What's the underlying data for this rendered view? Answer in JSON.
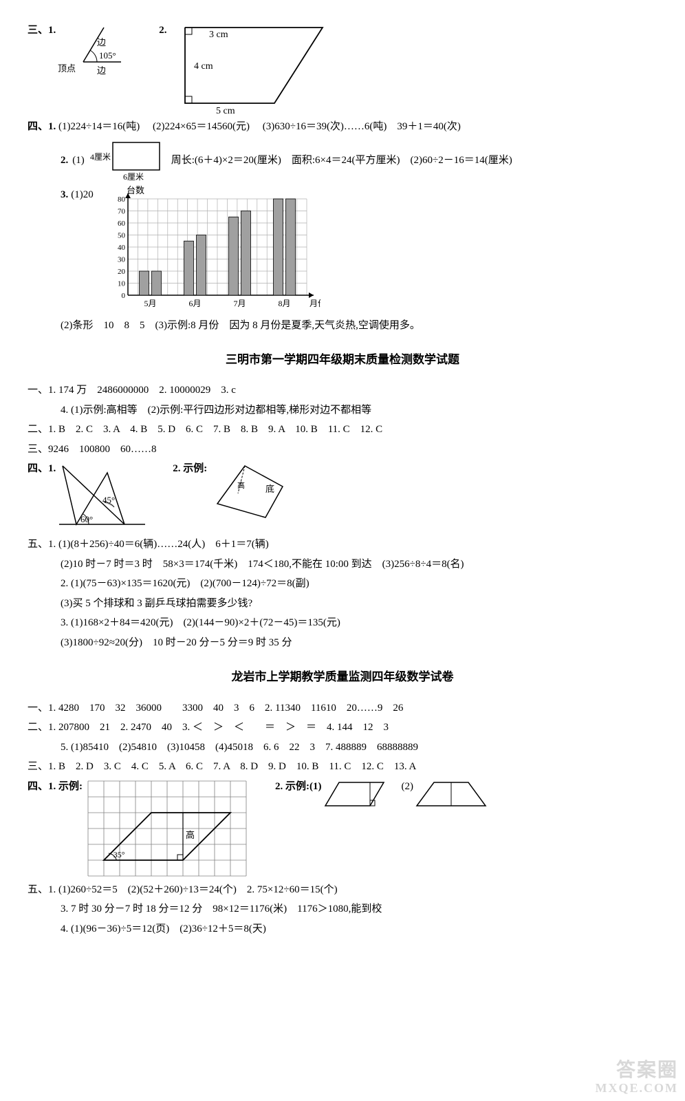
{
  "sec3": {
    "label": "三、1.",
    "angle_label_side1": "边",
    "angle_label_side2": "边",
    "angle_vertex": "顶点",
    "angle_value": "105°",
    "q2": {
      "label": "2.",
      "top": "3 cm",
      "left": "4 cm",
      "bottom": "5 cm"
    }
  },
  "sec4": {
    "label": "四、1.",
    "q1_1": "(1)224÷14＝16(吨)",
    "q1_2": "(2)224×65＝14560(元)",
    "q1_3": "(3)630÷16＝39(次)……6(吨)　39＋1＝40(次)",
    "q2": {
      "label": "2.",
      "p1": "(1)",
      "rect_w": "6厘米",
      "rect_h": "4厘米",
      "peri": "周长:(6＋4)×2＝20(厘米)",
      "area": "面积:6×4＝24(平方厘米)",
      "p2": "(2)60÷2－16＝14(厘米)"
    },
    "q3": {
      "label": "3.",
      "p1": "(1)20",
      "chart": {
        "y_label": "台数",
        "x_label": "月份",
        "y_ticks": [
          0,
          10,
          20,
          30,
          40,
          50,
          60,
          70,
          80
        ],
        "x_ticks": [
          "5月",
          "6月",
          "7月",
          "8月"
        ],
        "pairs": [
          [
            20,
            20
          ],
          [
            45,
            50
          ],
          [
            65,
            70
          ],
          [
            80,
            80
          ]
        ],
        "bar_color": "#a0a0a0",
        "grid_color": "#b0b0b0",
        "axis_color": "#000000",
        "bg": "#ffffff"
      },
      "p2": "(2)条形　10　8　5　(3)示例:8 月份　因为 8 月份是夏季,天气炎热,空调使用多。"
    }
  },
  "title_sm": "三明市第一学期四年级期末质量检测数学试题",
  "sm": {
    "s1": {
      "l1": "一、1. 174 万　2486000000　2. 10000029　3. c",
      "l2": "4. (1)示例:高相等　(2)示例:平行四边形对边都相等,梯形对边不都相等"
    },
    "s2": "二、1. B　2. C　3. A　4. B　5. D　6. C　7. B　8. B　9. A　10. B　11. C　12. C",
    "s3": "三、9246　100800　60……8",
    "s4": {
      "label": "四、1.",
      "q2label": "2. 示例:",
      "a45": "45°",
      "a60": "60°",
      "di": "底"
    },
    "s5": {
      "l1": "五、1. (1)(8＋256)÷40＝6(辆)……24(人)　6＋1＝7(辆)",
      "l2": "(2)10 时－7 时＝3 时　58×3＝174(千米)　174＜180,不能在 10:00 到达　(3)256÷8÷4＝8(名)",
      "l3": "2. (1)(75－63)×135＝1620(元)　(2)(700－124)÷72＝8(副)",
      "l4": "(3)买 5 个排球和 3 副乒乓球拍需要多少钱?",
      "l5": "3. (1)168×2＋84＝420(元)　(2)(144－90)×2＋(72－45)＝135(元)",
      "l6": "(3)1800÷92≈20(分)　10 时－20 分－5 分＝9 时 35 分"
    }
  },
  "title_ly": "龙岩市上学期教学质量监测四年级数学试卷",
  "ly": {
    "s1": "一、1. 4280　170　32　36000　　3300　40　3　6　2. 11340　11610　20……9　26",
    "s2": {
      "l1": "二、1. 207800　21　2. 2470　40　3. ＜　＞　＜　　＝　＞　＝　4. 144　12　3",
      "l2": "5. (1)85410　(2)54810　(3)10458　(4)45018　6. 6　22　3　7. 488889　68888889"
    },
    "s3": "三、1. B　2. D　3. C　4. C　5. A　6. C　7. A　8. D　9. D　10. B　11. C　12. C　13. A",
    "s4": {
      "label": "四、1. 示例:",
      "gao": "高",
      "a35": "35°",
      "q2label": "2. 示例:(1)",
      "q2p2": "(2)",
      "grid_color": "#808080"
    },
    "s5": {
      "l1": "五、1. (1)260÷52＝5　(2)(52＋260)÷13＝24(个)　2. 75×12÷60＝15(个)",
      "l2": "3. 7 时 30 分－7 时 18 分＝12 分　98×12＝1176(米)　1176＞1080,能到校",
      "l3": "4. (1)(96－36)÷5＝12(页)　(2)36÷12＋5＝8(天)"
    }
  },
  "watermark1": "答案圈",
  "watermark2": "MXQE.COM"
}
